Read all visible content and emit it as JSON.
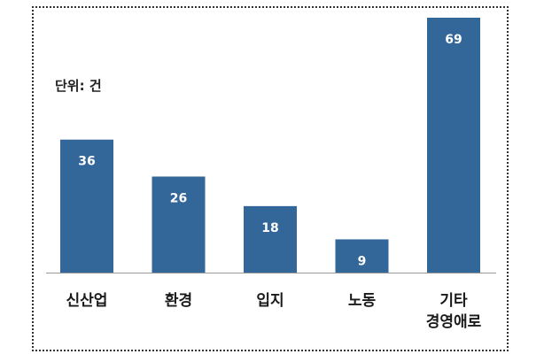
{
  "chart_data": {
    "type": "bar",
    "unit_label": "단위: 건",
    "categories": [
      [
        "신산업"
      ],
      [
        "환경"
      ],
      [
        "입지"
      ],
      [
        "노동"
      ],
      [
        "기타",
        "경영애로"
      ]
    ],
    "values": [
      36,
      26,
      18,
      9,
      69
    ],
    "ylim": [
      0,
      69
    ],
    "grid": false,
    "legend": "none",
    "bar_color": "#336699"
  }
}
